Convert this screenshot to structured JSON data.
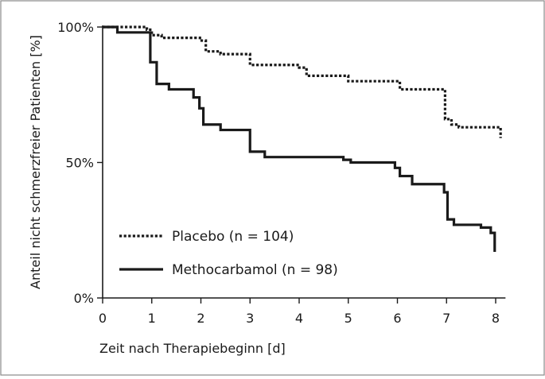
{
  "chart_data": {
    "type": "line",
    "title": "",
    "xlabel": "Zeit nach Therapiebeginn [d]",
    "ylabel": "Anteil nicht schmerzfreier Patienten [%]",
    "xlim": [
      0,
      8.2
    ],
    "ylim": [
      0,
      100
    ],
    "x_ticks": [
      0,
      1,
      2,
      3,
      4,
      5,
      6,
      7,
      8
    ],
    "x_tick_labels": [
      "0",
      "1",
      "2",
      "3",
      "4",
      "5",
      "6",
      "7",
      "8"
    ],
    "y_ticks": [
      0,
      50,
      100
    ],
    "y_tick_labels": [
      "0%",
      "50%",
      "100%"
    ],
    "grid": false,
    "legend_position": "bottom-left",
    "step": true,
    "series": [
      {
        "name": "Placebo (n = 104)",
        "style": "dotted",
        "color": "#1a1a1a",
        "x": [
          0,
          0.9,
          1.0,
          1.2,
          1.98,
          2.1,
          2.4,
          2.97,
          3.0,
          4.0,
          4.15,
          4.9,
          5.0,
          5.95,
          6.05,
          6.9,
          6.97,
          7.1,
          7.25,
          7.95,
          8.1
        ],
        "y": [
          100,
          99,
          97,
          96,
          95,
          91,
          90,
          90,
          86,
          85,
          82,
          82,
          80,
          80,
          77,
          77,
          66,
          64,
          63,
          63,
          59
        ]
      },
      {
        "name": "Methocarbamol (n = 98)",
        "style": "solid",
        "color": "#1a1a1a",
        "x": [
          0,
          0.3,
          0.95,
          0.97,
          1.1,
          1.35,
          1.75,
          1.85,
          1.97,
          2.05,
          2.4,
          2.9,
          3.0,
          3.3,
          4.0,
          4.9,
          5.05,
          5.6,
          5.95,
          6.05,
          6.3,
          6.9,
          6.95,
          7.02,
          7.15,
          7.7,
          7.9,
          7.98
        ],
        "y": [
          100,
          98,
          98,
          87,
          79,
          77,
          77,
          74,
          70,
          64,
          62,
          62,
          54,
          52,
          52,
          51,
          50,
          50,
          48,
          45,
          42,
          42,
          39,
          29,
          27,
          26,
          24,
          17
        ]
      }
    ]
  }
}
